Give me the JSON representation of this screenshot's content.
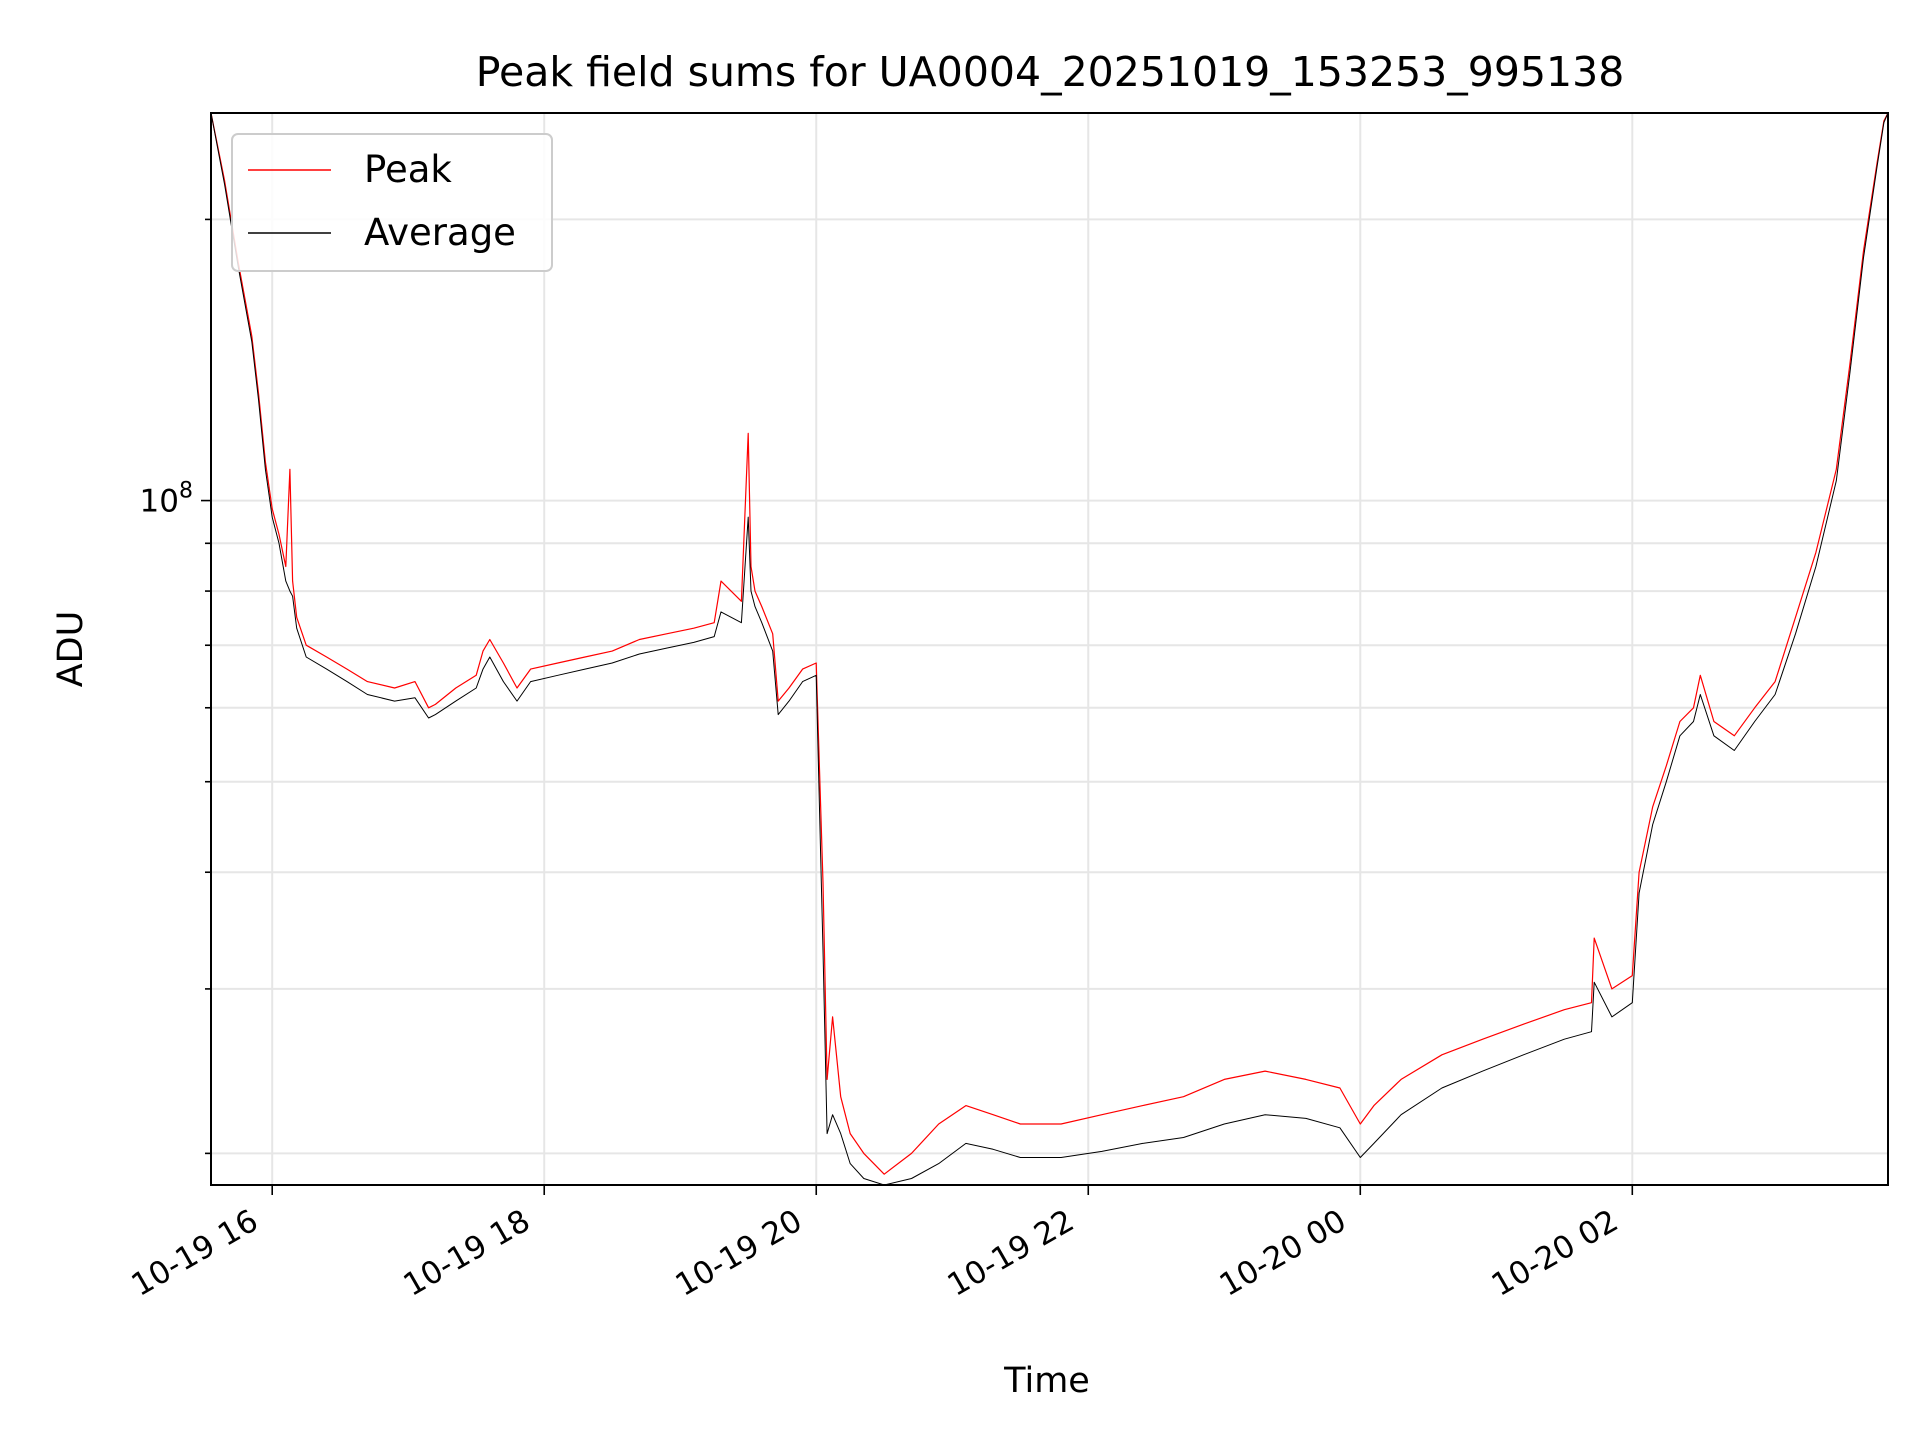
{
  "chart_data": {
    "type": "line",
    "title": "Peak field sums for UA0004_20251019_153253_995138",
    "xlabel": "Time",
    "ylabel": "ADU",
    "yscale": "log",
    "x_unit": "hours since 2025-10-19 00:00",
    "xlim": [
      15.55,
      27.88
    ],
    "ylim": [
      18500000,
      260000000
    ],
    "x_ticks": [
      {
        "value": 16,
        "label": "10-19 16"
      },
      {
        "value": 18,
        "label": "10-19 18"
      },
      {
        "value": 20,
        "label": "10-19 20"
      },
      {
        "value": 22,
        "label": "10-19 22"
      },
      {
        "value": 24,
        "label": "10-20 00"
      },
      {
        "value": 26,
        "label": "10-20 02"
      }
    ],
    "y_major_tick": {
      "value": 100000000,
      "label_base": "10",
      "label_exp": "8"
    },
    "y_minor_ticks": [
      20000000,
      30000000,
      40000000,
      50000000,
      60000000,
      70000000,
      80000000,
      90000000,
      200000000
    ],
    "legend": {
      "position": "top-left",
      "entries": [
        "Peak",
        "Average"
      ]
    },
    "series": [
      {
        "name": "Peak",
        "color": "#ff0000",
        "line_width": 1.2,
        "x": [
          15.55,
          15.65,
          15.75,
          15.85,
          15.9,
          15.95,
          16.0,
          16.05,
          16.1,
          16.13,
          16.15,
          16.18,
          16.25,
          16.4,
          16.55,
          16.7,
          16.9,
          17.05,
          17.15,
          17.2,
          17.35,
          17.5,
          17.55,
          17.6,
          17.7,
          17.8,
          17.9,
          18.1,
          18.3,
          18.5,
          18.7,
          18.9,
          19.1,
          19.25,
          19.3,
          19.45,
          19.5,
          19.52,
          19.55,
          19.6,
          19.68,
          19.72,
          19.8,
          19.9,
          20.0,
          20.05,
          20.08,
          20.12,
          20.18,
          20.25,
          20.35,
          20.5,
          20.7,
          20.9,
          21.1,
          21.3,
          21.5,
          21.8,
          22.1,
          22.4,
          22.7,
          23.0,
          23.3,
          23.6,
          23.85,
          24.0,
          24.1,
          24.3,
          24.6,
          24.9,
          25.2,
          25.5,
          25.7,
          25.72,
          25.85,
          26.0,
          26.05,
          26.15,
          26.25,
          26.35,
          26.45,
          26.5,
          26.6,
          26.75,
          26.9,
          27.05,
          27.2,
          27.35,
          27.5,
          27.6,
          27.7,
          27.8,
          27.85,
          27.88
        ],
        "y": [
          260000000,
          220000000,
          180000000,
          150000000,
          130000000,
          110000000,
          98000000,
          92000000,
          85000000,
          108000000,
          82000000,
          75000000,
          70000000,
          68000000,
          66000000,
          64000000,
          63000000,
          64000000,
          60000000,
          60500000,
          63000000,
          65000000,
          69000000,
          71000000,
          67000000,
          63000000,
          66000000,
          67000000,
          68000000,
          69000000,
          71000000,
          72000000,
          73000000,
          74000000,
          82000000,
          78000000,
          118000000,
          85000000,
          80000000,
          77000000,
          72000000,
          61000000,
          63000000,
          66000000,
          67000000,
          39000000,
          24000000,
          28000000,
          23000000,
          21000000,
          20000000,
          19000000,
          20000000,
          21500000,
          22500000,
          22000000,
          21500000,
          21500000,
          22000000,
          22500000,
          23000000,
          24000000,
          24500000,
          24000000,
          23500000,
          21500000,
          22500000,
          24000000,
          25500000,
          26500000,
          27500000,
          28500000,
          29000000,
          34000000,
          30000000,
          31000000,
          40000000,
          47000000,
          52000000,
          58000000,
          60000000,
          65000000,
          58000000,
          56000000,
          60000000,
          64000000,
          75000000,
          88000000,
          108000000,
          140000000,
          185000000,
          230000000,
          255000000,
          260000000
        ]
      },
      {
        "name": "Average",
        "color": "#000000",
        "line_width": 1.0,
        "x": [
          15.55,
          15.65,
          15.75,
          15.85,
          15.9,
          15.95,
          16.0,
          16.05,
          16.1,
          16.13,
          16.15,
          16.18,
          16.25,
          16.4,
          16.55,
          16.7,
          16.9,
          17.05,
          17.15,
          17.2,
          17.35,
          17.5,
          17.55,
          17.6,
          17.7,
          17.8,
          17.9,
          18.1,
          18.3,
          18.5,
          18.7,
          18.9,
          19.1,
          19.25,
          19.3,
          19.45,
          19.5,
          19.52,
          19.55,
          19.6,
          19.68,
          19.72,
          19.8,
          19.9,
          20.0,
          20.05,
          20.08,
          20.12,
          20.18,
          20.25,
          20.35,
          20.5,
          20.7,
          20.9,
          21.1,
          21.3,
          21.5,
          21.8,
          22.1,
          22.4,
          22.7,
          23.0,
          23.3,
          23.6,
          23.85,
          24.0,
          24.1,
          24.3,
          24.6,
          24.9,
          25.2,
          25.5,
          25.7,
          25.72,
          25.85,
          26.0,
          26.05,
          26.15,
          26.25,
          26.35,
          26.45,
          26.5,
          26.6,
          26.75,
          26.9,
          27.05,
          27.2,
          27.35,
          27.5,
          27.6,
          27.7,
          27.8,
          27.85,
          27.88
        ],
        "y": [
          260000000,
          218000000,
          178000000,
          148000000,
          128000000,
          108000000,
          96000000,
          90000000,
          82000000,
          80000000,
          79000000,
          73000000,
          68000000,
          66000000,
          64000000,
          62000000,
          61000000,
          61500000,
          58500000,
          59000000,
          61000000,
          63000000,
          66000000,
          68000000,
          64000000,
          61000000,
          64000000,
          65000000,
          66000000,
          67000000,
          68500000,
          69500000,
          70500000,
          71500000,
          76000000,
          74000000,
          96000000,
          80000000,
          77000000,
          74000000,
          69000000,
          59000000,
          61000000,
          64000000,
          65000000,
          33000000,
          21000000,
          22000000,
          21000000,
          19500000,
          18800000,
          18500000,
          18800000,
          19500000,
          20500000,
          20200000,
          19800000,
          19800000,
          20100000,
          20500000,
          20800000,
          21500000,
          22000000,
          21800000,
          21300000,
          19800000,
          20500000,
          22000000,
          23500000,
          24500000,
          25500000,
          26500000,
          27000000,
          30500000,
          28000000,
          29000000,
          38000000,
          45000000,
          50000000,
          56000000,
          58000000,
          62000000,
          56000000,
          54000000,
          58000000,
          62000000,
          72000000,
          85000000,
          105000000,
          137000000,
          182000000,
          228000000,
          254000000,
          260000000
        ]
      }
    ]
  }
}
